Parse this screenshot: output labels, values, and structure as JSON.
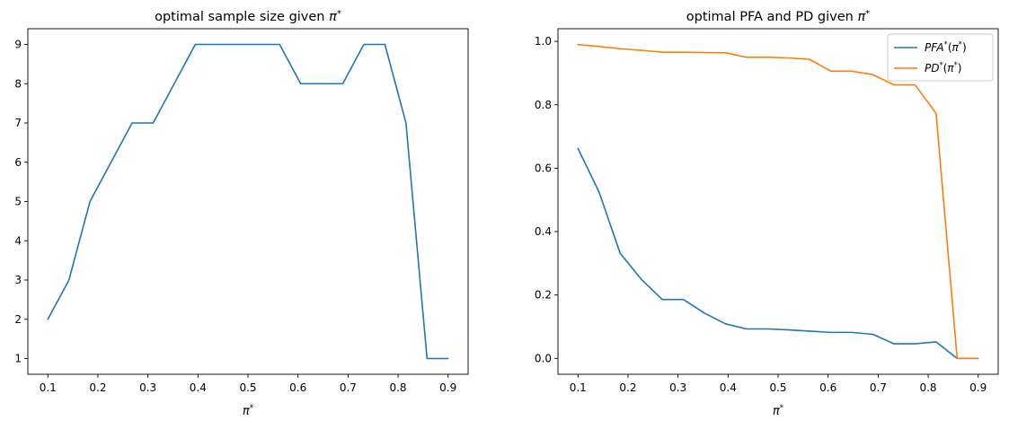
{
  "chart_data": [
    {
      "type": "line",
      "title": "optimal sample size given π*",
      "xlabel": "π*",
      "ylabel": "",
      "xlim": [
        0.06,
        0.94
      ],
      "ylim": [
        0.6,
        9.4
      ],
      "xticks": [
        0.1,
        0.2,
        0.3,
        0.4,
        0.5,
        0.6,
        0.7,
        0.8,
        0.9
      ],
      "xtick_labels": [
        "0.1",
        "0.2",
        "0.3",
        "0.4",
        "0.5",
        "0.6",
        "0.7",
        "0.8",
        "0.9"
      ],
      "yticks": [
        1,
        2,
        3,
        4,
        5,
        6,
        7,
        8,
        9
      ],
      "ytick_labels": [
        "1",
        "2",
        "3",
        "4",
        "5",
        "6",
        "7",
        "8",
        "9"
      ],
      "grid": false,
      "legend": null,
      "x": [
        0.1,
        0.1421,
        0.1842,
        0.2263,
        0.2684,
        0.3105,
        0.3526,
        0.3947,
        0.4368,
        0.4789,
        0.5211,
        0.5632,
        0.6053,
        0.6474,
        0.6895,
        0.7316,
        0.7737,
        0.8158,
        0.8579,
        0.9
      ],
      "series": [
        {
          "name": "",
          "color": "#1f77b4",
          "values": [
            2,
            3,
            5,
            6,
            7,
            7,
            8,
            9,
            9,
            9,
            9,
            9,
            8,
            8,
            8,
            9,
            9,
            7,
            1,
            1
          ]
        }
      ]
    },
    {
      "type": "line",
      "title": "optimal PFA and PD given π*",
      "xlabel": "π*",
      "ylabel": "",
      "xlim": [
        0.06,
        0.94
      ],
      "ylim": [
        -0.05,
        1.04
      ],
      "xticks": [
        0.1,
        0.2,
        0.3,
        0.4,
        0.5,
        0.6,
        0.7,
        0.8,
        0.9
      ],
      "xtick_labels": [
        "0.1",
        "0.2",
        "0.3",
        "0.4",
        "0.5",
        "0.6",
        "0.7",
        "0.8",
        "0.9"
      ],
      "yticks": [
        0.0,
        0.2,
        0.4,
        0.6,
        0.8,
        1.0
      ],
      "ytick_labels": [
        "0.0",
        "0.2",
        "0.4",
        "0.6",
        "0.8",
        "1.0"
      ],
      "grid": false,
      "legend": "top-right",
      "x": [
        0.1,
        0.1421,
        0.1842,
        0.2263,
        0.2684,
        0.3105,
        0.3526,
        0.3947,
        0.4368,
        0.4789,
        0.5211,
        0.5632,
        0.6053,
        0.6474,
        0.6895,
        0.7316,
        0.7737,
        0.8158,
        0.8579,
        0.9
      ],
      "series": [
        {
          "name": "PFA*(π*)",
          "color": "#1f77b4",
          "values": [
            0.662,
            0.525,
            0.332,
            0.25,
            0.186,
            0.186,
            0.143,
            0.109,
            0.093,
            0.093,
            0.09,
            0.086,
            0.082,
            0.082,
            0.076,
            0.046,
            0.046,
            0.052,
            0.0,
            0.0
          ]
        },
        {
          "name": "PD*(π*)",
          "color": "#ff7f0e",
          "values": [
            0.99,
            0.984,
            0.977,
            0.972,
            0.966,
            0.966,
            0.965,
            0.964,
            0.95,
            0.95,
            0.948,
            0.943,
            0.906,
            0.906,
            0.895,
            0.863,
            0.863,
            0.773,
            0.0,
            0.0
          ]
        }
      ]
    }
  ]
}
